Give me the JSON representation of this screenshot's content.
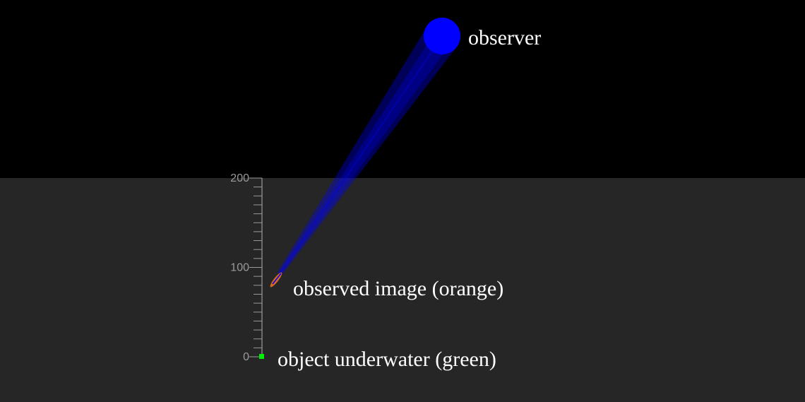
{
  "colors": {
    "air": "#000000",
    "water": "#262626",
    "observer": "#0000ff",
    "beam": "#0000ff",
    "image": "#d2691e",
    "object": "#00ee00",
    "scale": "#9a9a9a",
    "text": "#ffffff"
  },
  "labels": {
    "observer": "observer",
    "observed_image": "observed image (orange)",
    "object": "object underwater (green)"
  },
  "scale": {
    "min": 0,
    "max": 200,
    "major_step": 100,
    "minor_step": 10,
    "tick_labels": [
      "0",
      "100",
      "200"
    ]
  }
}
